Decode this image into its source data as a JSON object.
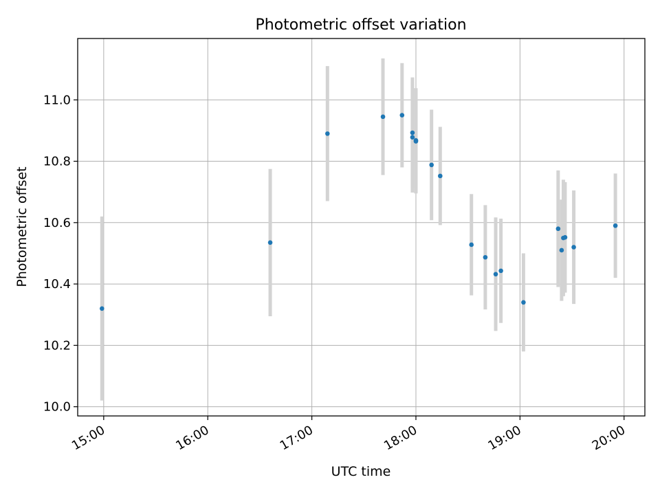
{
  "chart_data": {
    "type": "scatter",
    "title": "Photometric offset variation",
    "xlabel": "UTC time",
    "ylabel": "Photometric offset",
    "x_ticks": [
      "15:00",
      "16:00",
      "17:00",
      "18:00",
      "19:00",
      "20:00"
    ],
    "y_ticks": [
      "10.0",
      "10.2",
      "10.4",
      "10.6",
      "10.8",
      "11.0"
    ],
    "xlim": [
      "14:45",
      "20:12"
    ],
    "ylim": [
      9.97,
      11.2
    ],
    "grid": true,
    "legend": "none",
    "colors": {
      "point": "#1f77b4",
      "errorbar": "#d3d3d3",
      "grid": "#b0b0b0"
    },
    "series": [
      {
        "points": [
          {
            "x": "14:59",
            "y": 10.32,
            "err": 0.3
          },
          {
            "x": "16:36",
            "y": 10.535,
            "err": 0.24
          },
          {
            "x": "17:09",
            "y": 10.89,
            "err": 0.22
          },
          {
            "x": "17:41",
            "y": 10.945,
            "err": 0.19
          },
          {
            "x": "17:52",
            "y": 10.95,
            "err": 0.17
          },
          {
            "x": "17:58",
            "y": 10.878,
            "err": 0.18
          },
          {
            "x": "17:58",
            "y": 10.893,
            "err": 0.18
          },
          {
            "x": "18:00",
            "y": 10.868,
            "err": 0.17
          },
          {
            "x": "18:00",
            "y": 10.865,
            "err": 0.17
          },
          {
            "x": "18:09",
            "y": 10.788,
            "err": 0.18
          },
          {
            "x": "18:14",
            "y": 10.752,
            "err": 0.16
          },
          {
            "x": "18:32",
            "y": 10.528,
            "err": 0.165
          },
          {
            "x": "18:40",
            "y": 10.487,
            "err": 0.17
          },
          {
            "x": "18:46",
            "y": 10.432,
            "err": 0.185
          },
          {
            "x": "18:49",
            "y": 10.443,
            "err": 0.17
          },
          {
            "x": "19:02",
            "y": 10.34,
            "err": 0.16
          },
          {
            "x": "19:22",
            "y": 10.58,
            "err": 0.19
          },
          {
            "x": "19:24",
            "y": 10.51,
            "err": 0.165
          },
          {
            "x": "19:25",
            "y": 10.55,
            "err": 0.19
          },
          {
            "x": "19:26",
            "y": 10.552,
            "err": 0.18
          },
          {
            "x": "19:31",
            "y": 10.52,
            "err": 0.185
          },
          {
            "x": "19:55",
            "y": 10.59,
            "err": 0.17
          }
        ]
      }
    ]
  }
}
